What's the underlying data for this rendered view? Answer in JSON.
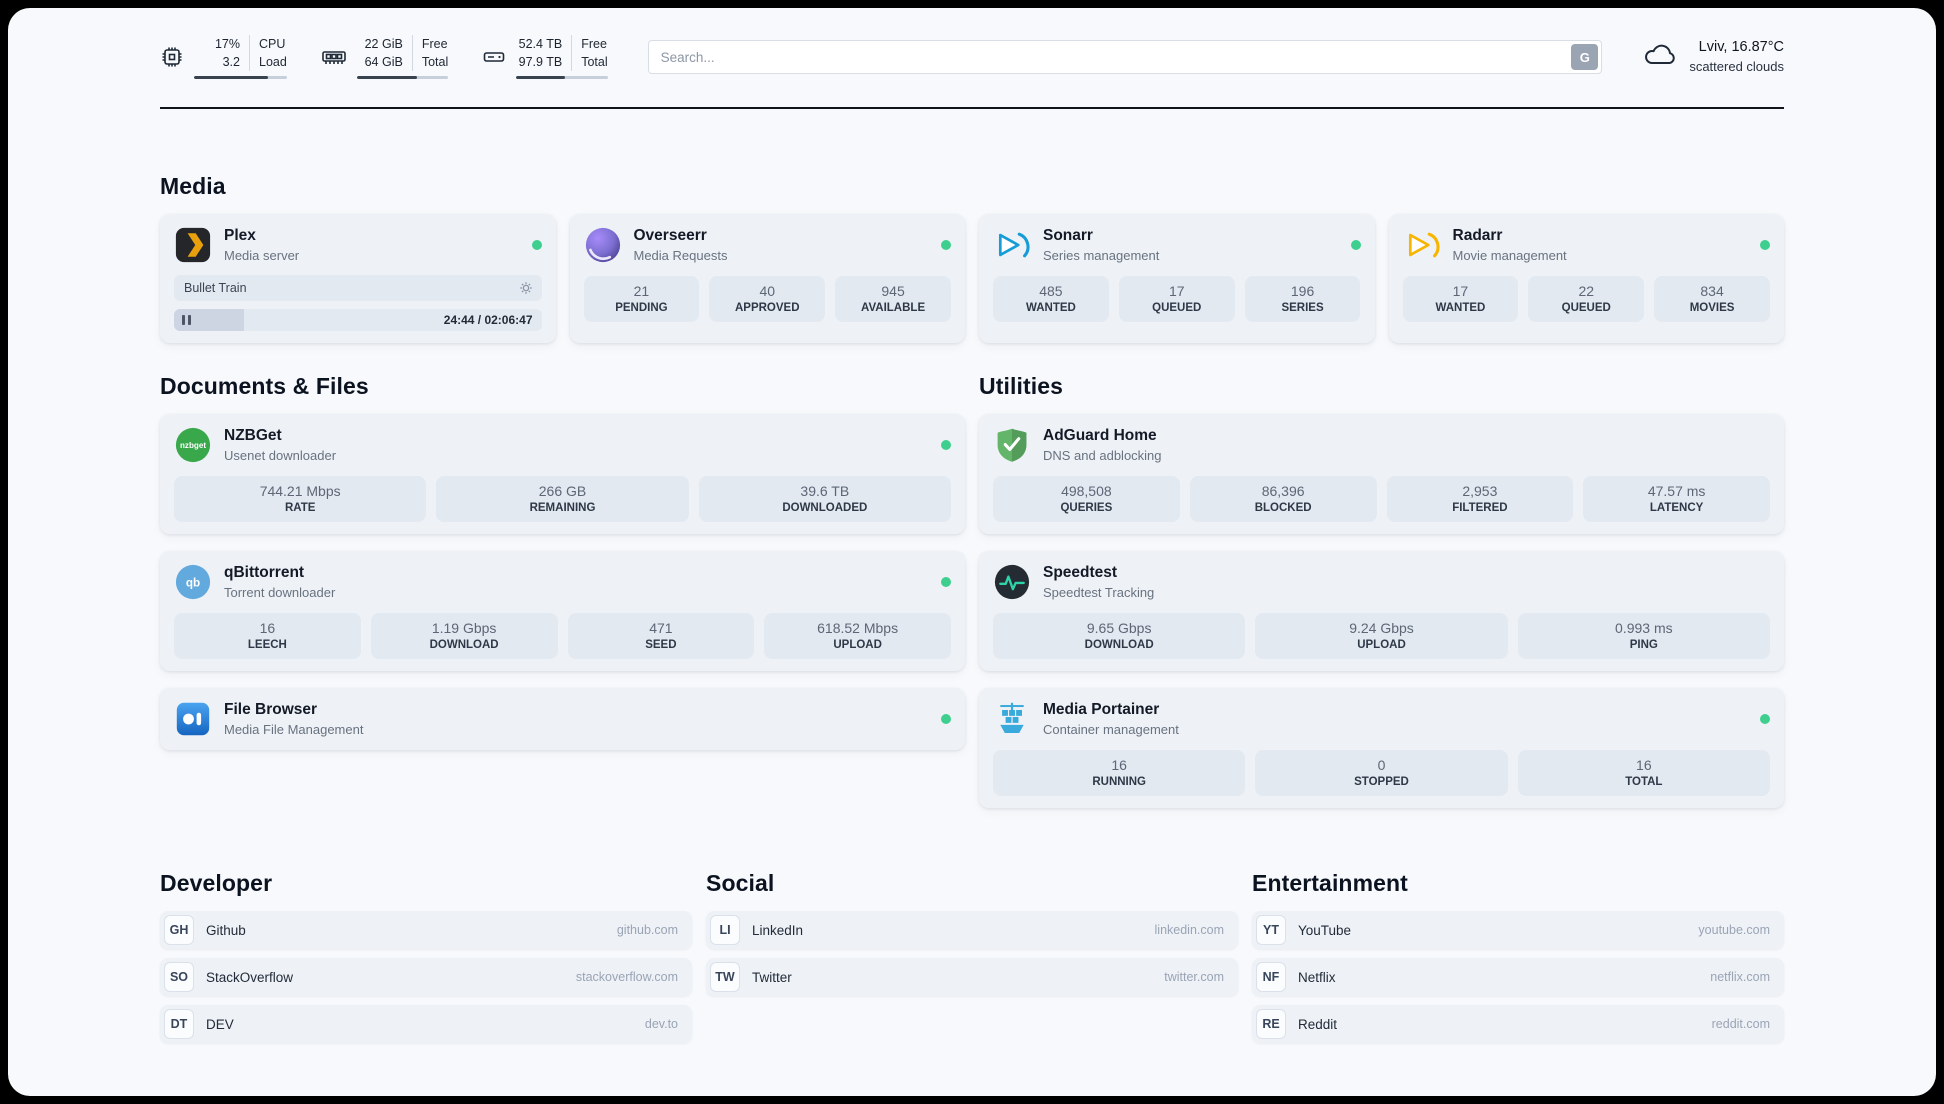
{
  "topbar": {
    "cpu": {
      "value": "17%",
      "load": "3.2",
      "label_top": "CPU",
      "label_bottom": "Load",
      "bar_percent": 80
    },
    "ram": {
      "free": "22 GiB",
      "total": "64 GiB",
      "label_top": "Free",
      "label_bottom": "Total",
      "bar_percent": 66
    },
    "disk": {
      "free": "52.4 TB",
      "total": "97.9 TB",
      "label_top": "Free",
      "label_bottom": "Total",
      "bar_percent": 53
    },
    "search": {
      "placeholder": "Search...",
      "button_label": "G"
    },
    "weather": {
      "location": "Lviv, 16.87°C",
      "condition": "scattered clouds"
    }
  },
  "sections": {
    "media_title": "Media",
    "documents_title": "Documents & Files",
    "utilities_title": "Utilities",
    "developer_title": "Developer",
    "social_title": "Social",
    "entertainment_title": "Entertainment"
  },
  "apps": {
    "plex": {
      "name": "Plex",
      "desc": "Media server",
      "now_playing": "Bullet Train",
      "time": "24:44 / 02:06:47",
      "progress_percent": 19
    },
    "overseerr": {
      "name": "Overseerr",
      "desc": "Media Requests",
      "stats": [
        {
          "value": "21",
          "label": "PENDING"
        },
        {
          "value": "40",
          "label": "APPROVED"
        },
        {
          "value": "945",
          "label": "AVAILABLE"
        }
      ]
    },
    "sonarr": {
      "name": "Sonarr",
      "desc": "Series management",
      "stats": [
        {
          "value": "485",
          "label": "WANTED"
        },
        {
          "value": "17",
          "label": "QUEUED"
        },
        {
          "value": "196",
          "label": "SERIES"
        }
      ]
    },
    "radarr": {
      "name": "Radarr",
      "desc": "Movie management",
      "stats": [
        {
          "value": "17",
          "label": "WANTED"
        },
        {
          "value": "22",
          "label": "QUEUED"
        },
        {
          "value": "834",
          "label": "MOVIES"
        }
      ]
    },
    "nzbget": {
      "name": "NZBGet",
      "desc": "Usenet downloader",
      "icon_text": "nzbget",
      "stats": [
        {
          "value": "744.21 Mbps",
          "label": "RATE"
        },
        {
          "value": "266 GB",
          "label": "REMAINING"
        },
        {
          "value": "39.6 TB",
          "label": "DOWNLOADED"
        }
      ]
    },
    "qbittorrent": {
      "name": "qBittorrent",
      "desc": "Torrent downloader",
      "icon_text": "qb",
      "stats": [
        {
          "value": "16",
          "label": "LEECH"
        },
        {
          "value": "1.19 Gbps",
          "label": "DOWNLOAD"
        },
        {
          "value": "471",
          "label": "SEED"
        },
        {
          "value": "618.52 Mbps",
          "label": "UPLOAD"
        }
      ]
    },
    "filebrowser": {
      "name": "File Browser",
      "desc": "Media File Management"
    },
    "adguard": {
      "name": "AdGuard Home",
      "desc": "DNS and adblocking",
      "stats": [
        {
          "value": "498,508",
          "label": "QUERIES"
        },
        {
          "value": "86,396",
          "label": "BLOCKED"
        },
        {
          "value": "2,953",
          "label": "FILTERED"
        },
        {
          "value": "47.57 ms",
          "label": "LATENCY"
        }
      ]
    },
    "speedtest": {
      "name": "Speedtest",
      "desc": "Speedtest Tracking",
      "stats": [
        {
          "value": "9.65 Gbps",
          "label": "DOWNLOAD"
        },
        {
          "value": "9.24 Gbps",
          "label": "UPLOAD"
        },
        {
          "value": "0.993 ms",
          "label": "PING"
        }
      ]
    },
    "portainer": {
      "name": "Media Portainer",
      "desc": "Container management",
      "stats": [
        {
          "value": "16",
          "label": "RUNNING"
        },
        {
          "value": "0",
          "label": "STOPPED"
        },
        {
          "value": "16",
          "label": "TOTAL"
        }
      ]
    }
  },
  "bookmarks": {
    "developer": [
      {
        "abbr": "GH",
        "name": "Github",
        "url": "github.com"
      },
      {
        "abbr": "SO",
        "name": "StackOverflow",
        "url": "stackoverflow.com"
      },
      {
        "abbr": "DT",
        "name": "DEV",
        "url": "dev.to"
      }
    ],
    "social": [
      {
        "abbr": "LI",
        "name": "LinkedIn",
        "url": "linkedin.com"
      },
      {
        "abbr": "TW",
        "name": "Twitter",
        "url": "twitter.com"
      }
    ],
    "entertainment": [
      {
        "abbr": "YT",
        "name": "YouTube",
        "url": "youtube.com"
      },
      {
        "abbr": "NF",
        "name": "Netflix",
        "url": "netflix.com"
      },
      {
        "abbr": "RE",
        "name": "Reddit",
        "url": "reddit.com"
      }
    ]
  },
  "colors": {
    "status_online": "#3ecf8e",
    "plex_accent": "#e8a00d",
    "sonarr_accent": "#169cd6",
    "radarr_accent": "#f7b500",
    "adguard_accent": "#63b569",
    "portainer_accent": "#3aa9dc"
  }
}
